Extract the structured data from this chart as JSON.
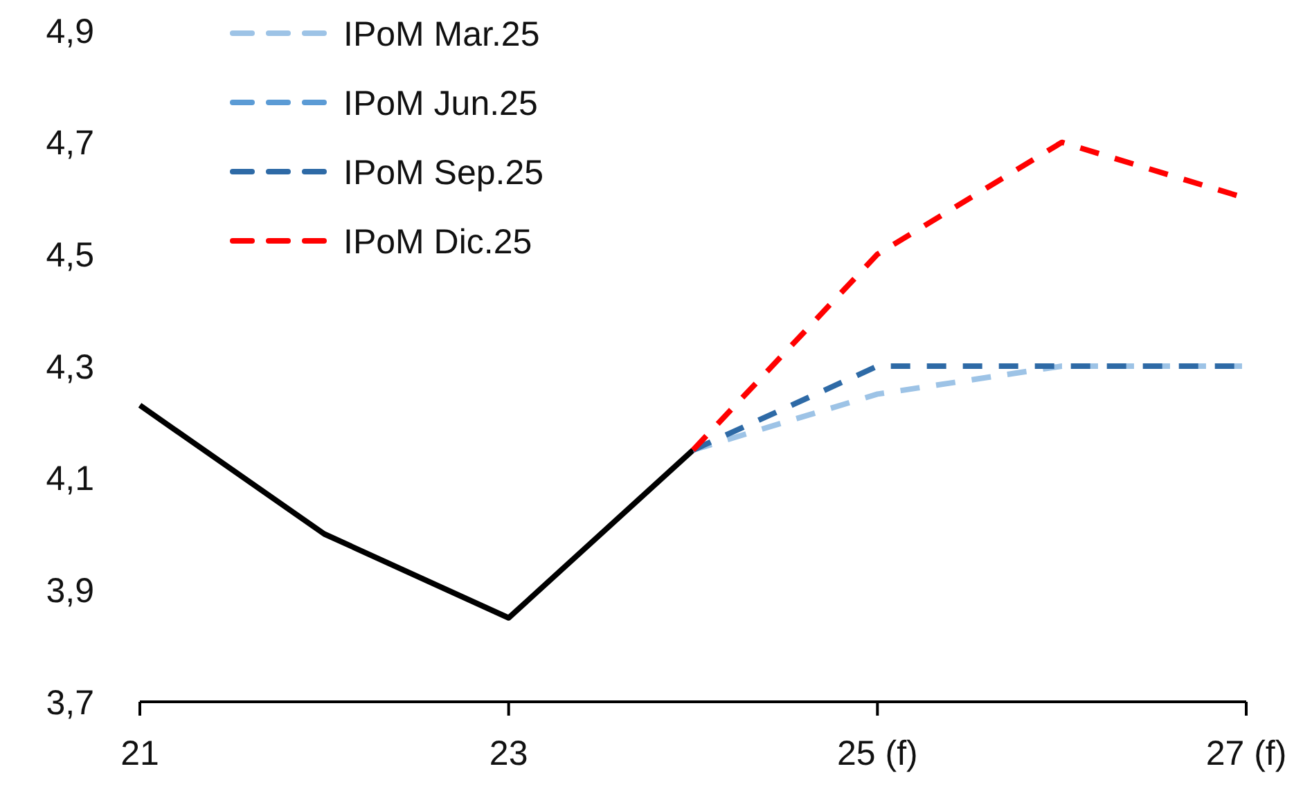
{
  "chart_data": {
    "type": "line",
    "x": [
      21,
      22,
      23,
      24,
      25,
      26,
      27
    ],
    "xlim": [
      21,
      27
    ],
    "xticks": [
      21,
      23,
      {
        "value": 25,
        "label": "25 (f)"
      },
      {
        "value": 27,
        "label": "27 (f)"
      }
    ],
    "ylim": [
      3.7,
      4.9
    ],
    "yticks": [
      {
        "value": 3.7,
        "label": "3,7"
      },
      {
        "value": 3.9,
        "label": "3,9"
      },
      {
        "value": 4.1,
        "label": "4,1"
      },
      {
        "value": 4.3,
        "label": "4,3"
      },
      {
        "value": 4.5,
        "label": "4,5"
      },
      {
        "value": 4.7,
        "label": "4,7"
      },
      {
        "value": 4.9,
        "label": "4,9"
      }
    ],
    "grid": false,
    "legend": "top left",
    "marker": "none",
    "series": [
      {
        "color": "#000000",
        "line_style": "solid",
        "values": [
          4.23,
          4.0,
          3.85,
          4.15,
          null,
          null,
          null
        ]
      },
      {
        "name": "IPoM Mar.25",
        "color": "#9dc3e6",
        "line_style": "dashed",
        "values": [
          null,
          null,
          null,
          4.15,
          4.25,
          4.3,
          4.3
        ]
      },
      {
        "name": "IPoM Jun.25",
        "color": "#5b9bd5",
        "line_style": "dashed",
        "values": [
          null,
          null,
          null,
          null,
          null,
          null,
          null
        ]
      },
      {
        "name": "IPoM Sep.25",
        "color": "#2e6aa6",
        "line_style": "dashed",
        "values": [
          null,
          null,
          null,
          4.15,
          4.3,
          4.3,
          4.3
        ]
      },
      {
        "name": "IPoM Dic.25",
        "color": "#ff0000",
        "line_style": "dashed",
        "values": [
          null,
          null,
          null,
          4.15,
          4.5,
          4.7,
          4.6
        ]
      }
    ]
  }
}
